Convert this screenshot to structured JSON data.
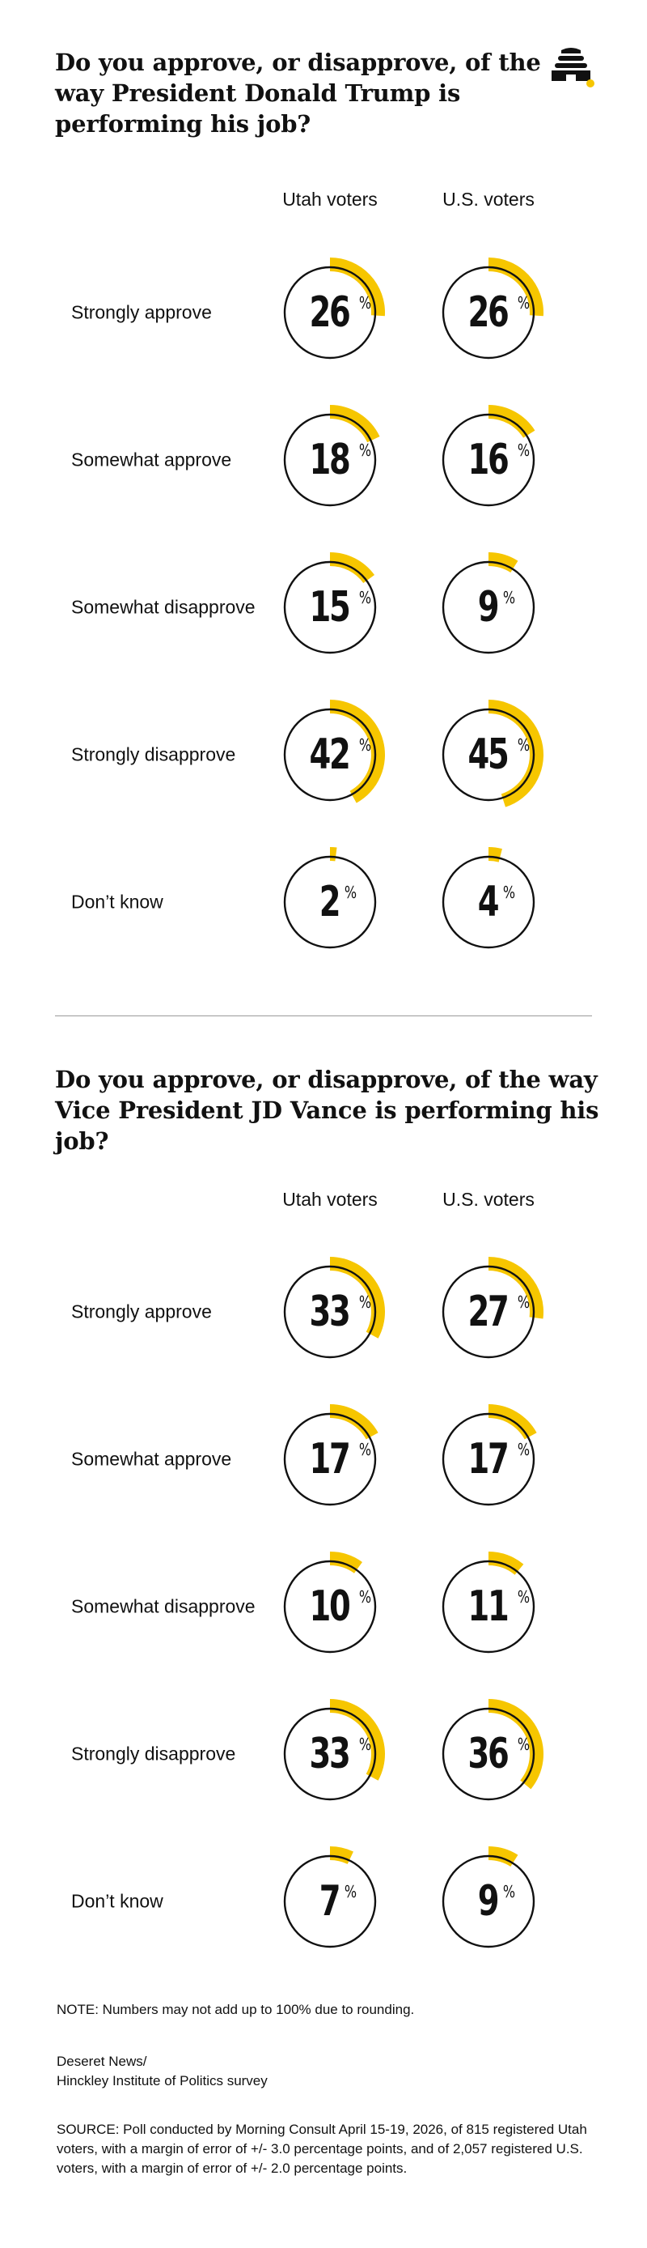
{
  "brand": {
    "logo_icon": "beehive-icon",
    "accent_color": "#F6C600",
    "ring_color": "#111111"
  },
  "questions": [
    {
      "title": "Do you approve, or disapprove, of the way President Donald Trump is performing his job?",
      "columns": [
        "Utah voters",
        "U.S. voters"
      ],
      "rows": [
        {
          "label": "Strongly approve",
          "values": [
            26,
            26
          ]
        },
        {
          "label": "Somewhat approve",
          "values": [
            18,
            16
          ]
        },
        {
          "label": "Somewhat disapprove",
          "values": [
            15,
            9
          ]
        },
        {
          "label": "Strongly disapprove",
          "values": [
            42,
            45
          ]
        },
        {
          "label": "Don’t know",
          "values": [
            2,
            4
          ]
        }
      ]
    },
    {
      "title": "Do you approve, or disapprove, of the way Vice President JD Vance is performing his job?",
      "columns": [
        "Utah voters",
        "U.S. voters"
      ],
      "rows": [
        {
          "label": "Strongly approve",
          "values": [
            33,
            27
          ]
        },
        {
          "label": "Somewhat approve",
          "values": [
            17,
            17
          ]
        },
        {
          "label": "Somewhat disapprove",
          "values": [
            10,
            11
          ]
        },
        {
          "label": "Strongly disapprove",
          "values": [
            33,
            36
          ]
        },
        {
          "label": "Don’t know",
          "values": [
            7,
            9
          ]
        }
      ]
    }
  ],
  "percent_sign": "%",
  "footer": {
    "note": "NOTE: Numbers may not add up to 100% due to rounding.",
    "credit_line1": "Deseret News/",
    "credit_line2": "Hinckley Institute of Politics survey",
    "source": "SOURCE: Poll conducted by Morning Consult April 15-19, 2026, of 815 registered Utah voters, with a margin of error of +/- 3.0 percentage points, and of 2,057 registered U.S.  voters, with a margin of error of +/- 2.0 percentage points."
  },
  "chart_data": [
    {
      "type": "pie",
      "title": "Do you approve, or disapprove, of the way President Donald Trump is performing his job?",
      "categories": [
        "Strongly approve",
        "Somewhat approve",
        "Somewhat disapprove",
        "Strongly disapprove",
        "Don’t know"
      ],
      "series": [
        {
          "name": "Utah voters",
          "values": [
            26,
            18,
            15,
            42,
            2
          ]
        },
        {
          "name": "U.S. voters",
          "values": [
            26,
            16,
            9,
            45,
            4
          ]
        }
      ],
      "unit": "%"
    },
    {
      "type": "pie",
      "title": "Do you approve, or disapprove, of the way Vice President JD Vance is performing his job?",
      "categories": [
        "Strongly approve",
        "Somewhat approve",
        "Somewhat disapprove",
        "Strongly disapprove",
        "Don’t know"
      ],
      "series": [
        {
          "name": "Utah voters",
          "values": [
            33,
            17,
            10,
            33,
            7
          ]
        },
        {
          "name": "U.S. voters",
          "values": [
            27,
            17,
            11,
            36,
            9
          ]
        }
      ],
      "unit": "%"
    }
  ]
}
